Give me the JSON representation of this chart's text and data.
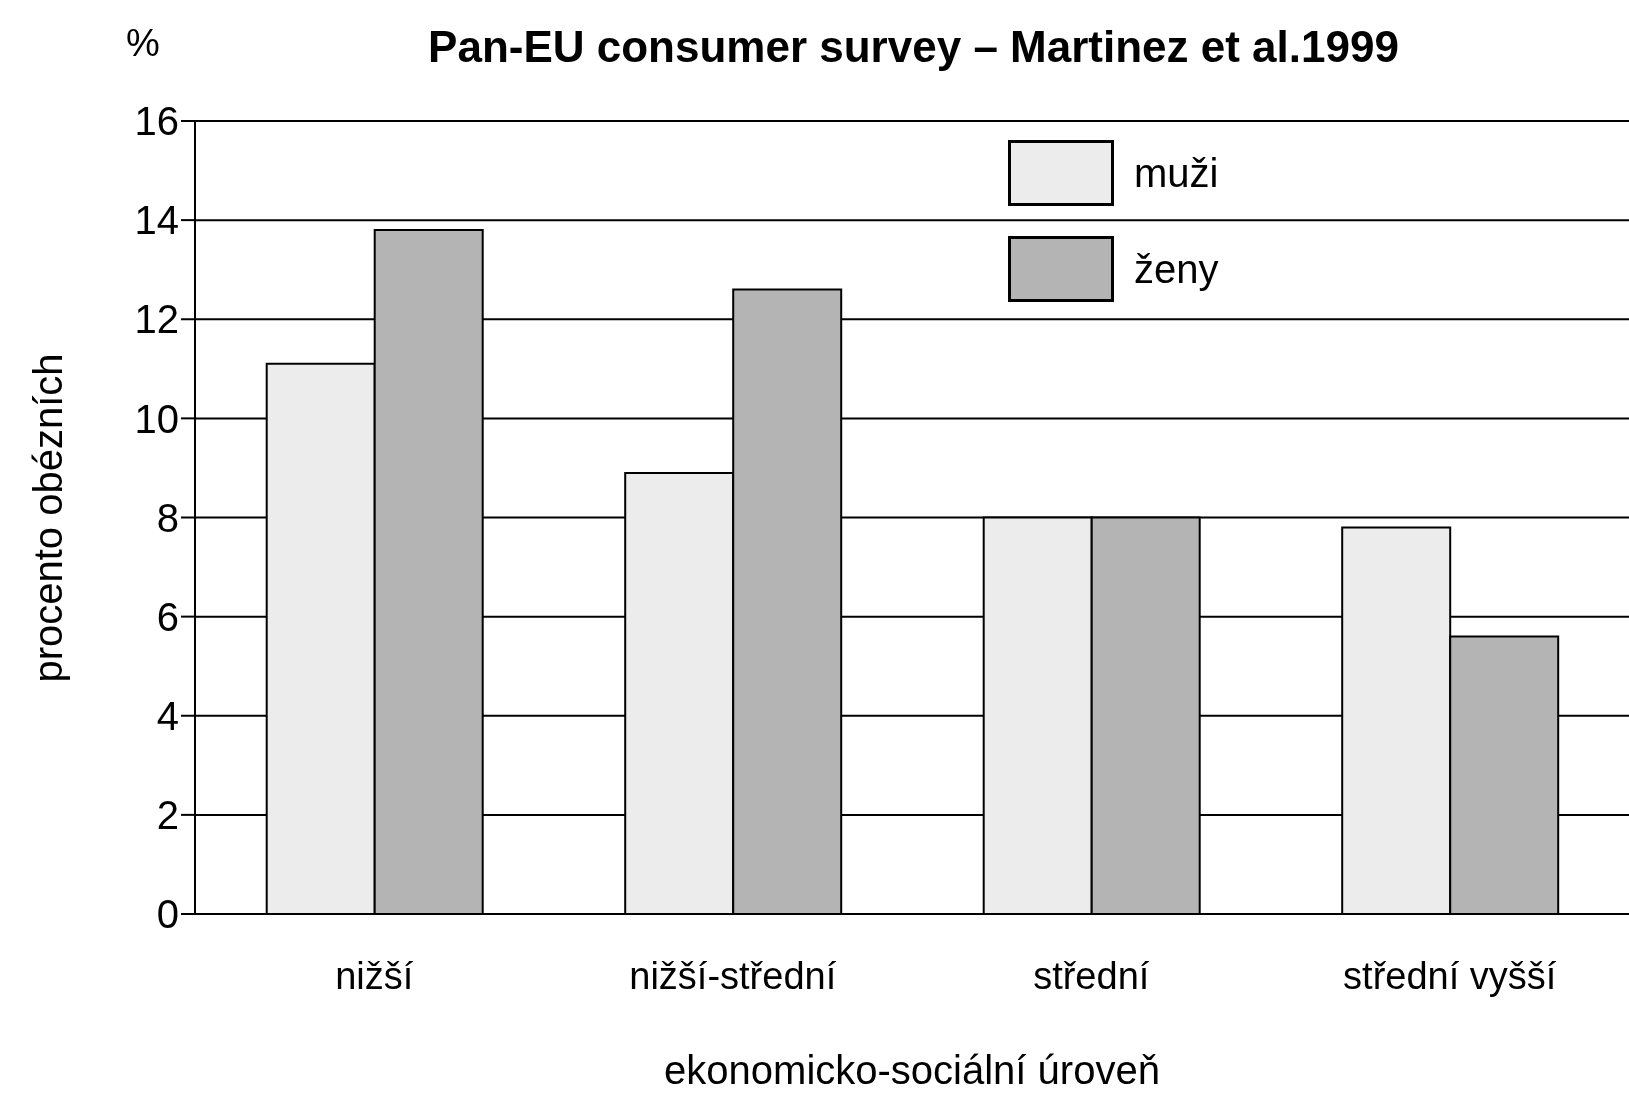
{
  "chart_data": {
    "type": "bar",
    "title": "Pan-EU consumer survey – Martinez et al.1999",
    "xlabel": "ekonomicko-sociální úroveň",
    "ylabel": "procento obézních",
    "annotations": [
      "%"
    ],
    "categories": [
      "nižší",
      "nižší-střední",
      "střední",
      "střední vyšší"
    ],
    "series": [
      {
        "name": "muži",
        "color": "#ececec",
        "values": [
          11.1,
          8.9,
          8.0,
          7.8
        ]
      },
      {
        "name": "ženy",
        "color": "#b4b4b4",
        "values": [
          13.8,
          12.6,
          8.0,
          5.6
        ]
      }
    ],
    "ylim": [
      0,
      16
    ],
    "yticks": [
      0,
      2,
      4,
      6,
      8,
      10,
      12,
      14,
      16
    ],
    "grid": "y",
    "legend": "top right"
  }
}
